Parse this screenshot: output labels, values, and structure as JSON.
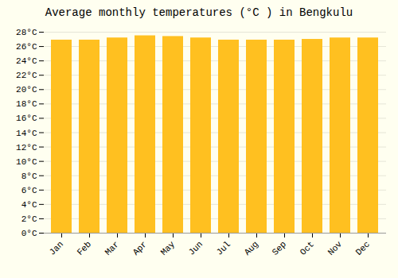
{
  "chart_data": {
    "type": "bar",
    "title": "Average monthly temperatures (°C ) in Bengkulu",
    "categories": [
      "Jan",
      "Feb",
      "Mar",
      "Apr",
      "May",
      "Jun",
      "Jul",
      "Aug",
      "Sep",
      "Oct",
      "Nov",
      "Dec"
    ],
    "values": [
      26.9,
      26.9,
      27.2,
      27.5,
      27.4,
      27.2,
      26.9,
      26.9,
      26.9,
      27.0,
      27.2,
      27.2
    ],
    "color": "#FFC020",
    "ylim": [
      0,
      28
    ],
    "yticks": [
      {
        "value": 0,
        "label": "0°C"
      },
      {
        "value": 2,
        "label": "2°C"
      },
      {
        "value": 4,
        "label": "4°C"
      },
      {
        "value": 6,
        "label": "6°C"
      },
      {
        "value": 8,
        "label": "8°C"
      },
      {
        "value": 10,
        "label": "10°C"
      },
      {
        "value": 12,
        "label": "12°C"
      },
      {
        "value": 14,
        "label": "14°C"
      },
      {
        "value": 16,
        "label": "16°C"
      },
      {
        "value": 18,
        "label": "18°C"
      },
      {
        "value": 20,
        "label": "20°C"
      },
      {
        "value": 22,
        "label": "22°C"
      },
      {
        "value": 24,
        "label": "24°C"
      },
      {
        "value": 26,
        "label": "26°C"
      },
      {
        "value": 28,
        "label": "28°C"
      }
    ],
    "grid": true
  }
}
